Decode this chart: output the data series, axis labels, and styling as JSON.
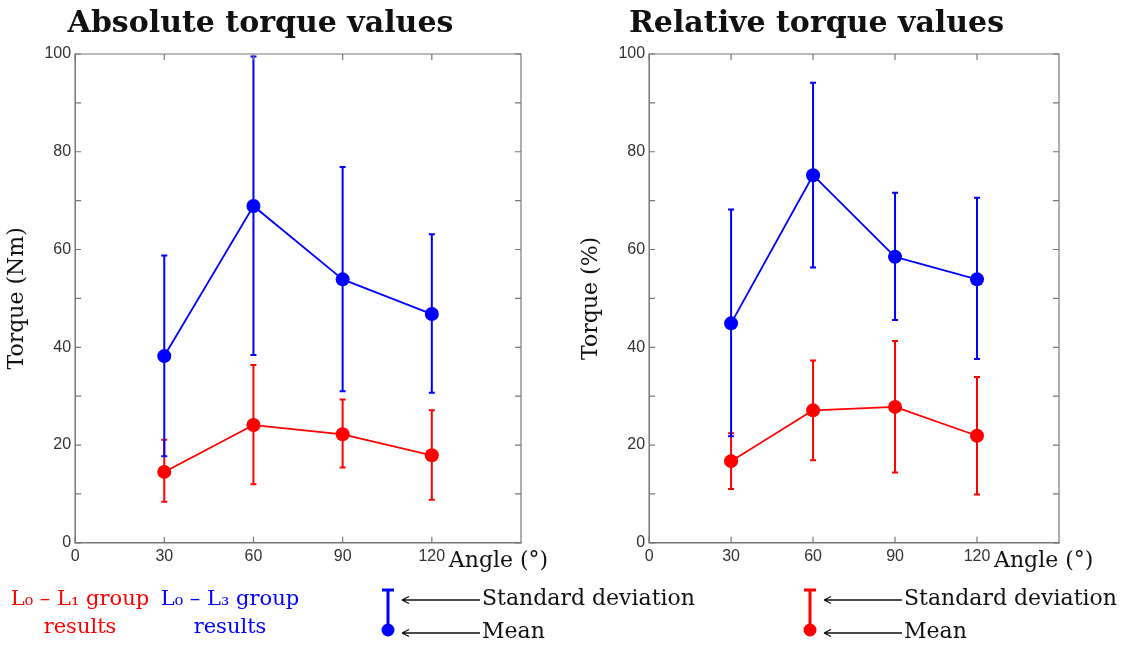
{
  "chart_data": [
    {
      "type": "line",
      "title": "Absolute torque values",
      "xlabel": "Angle (°)",
      "ylabel": "Torque (Nm)",
      "x": [
        30,
        60,
        90,
        120
      ],
      "xlim": [
        0,
        150
      ],
      "xticks": [
        0,
        30,
        60,
        90,
        120
      ],
      "ylim": [
        0,
        100
      ],
      "yticks": [
        0,
        {
          "value": 10,
          "label": null
        },
        20,
        {
          "value": 30,
          "label": null
        },
        40,
        {
          "value": 50,
          "label": null
        },
        60,
        {
          "value": 70,
          "label": null
        },
        80,
        {
          "value": 90,
          "label": null
        },
        100
      ],
      "grid": false,
      "marker": "circle",
      "legend": "bottom",
      "annotations": [
        "Standard deviation",
        "Mean"
      ],
      "series": [
        {
          "name": "L₀ – L₁ group results",
          "color": "#ff0000",
          "values": [
            14.5,
            24.1,
            22.2,
            17.9
          ],
          "errors": [
            [
              8.4,
              21.1
            ],
            [
              12.0,
              36.4
            ],
            [
              15.4,
              29.3
            ],
            [
              8.8,
              27.1
            ]
          ]
        },
        {
          "name": "L₀ – L₃ group results",
          "color": "#0000ff",
          "values": [
            38.2,
            68.9,
            53.9,
            46.8
          ],
          "errors": [
            [
              17.7,
              58.8
            ],
            [
              38.4,
              99.5
            ],
            [
              31.0,
              76.9
            ],
            [
              30.7,
              63.1
            ]
          ]
        }
      ]
    },
    {
      "type": "line",
      "title": "Relative torque values",
      "xlabel": "Angle (°)",
      "ylabel": "Torque (%)",
      "x": [
        30,
        60,
        90,
        120
      ],
      "xlim": [
        0,
        150
      ],
      "xticks": [
        0,
        30,
        60,
        90,
        120
      ],
      "ylim": [
        0,
        100
      ],
      "yticks": [
        0,
        {
          "value": 10,
          "label": null
        },
        20,
        {
          "value": 30,
          "label": null
        },
        40,
        {
          "value": 50,
          "label": null
        },
        60,
        {
          "value": 70,
          "label": null
        },
        80,
        {
          "value": 90,
          "label": null
        },
        100
      ],
      "grid": false,
      "marker": "circle",
      "annotations": [
        "Standard deviation",
        "Mean"
      ],
      "series": [
        {
          "color": "#ff0000",
          "values": [
            16.7,
            27.1,
            27.8,
            21.9
          ],
          "errors": [
            [
              11.0,
              22.4
            ],
            [
              16.9,
              37.3
            ],
            [
              14.4,
              41.3
            ],
            [
              9.9,
              33.9
            ]
          ]
        },
        {
          "color": "#0000ff",
          "values": [
            44.9,
            75.2,
            58.5,
            53.9
          ],
          "errors": [
            [
              21.8,
              68.2
            ],
            [
              56.3,
              94.1
            ],
            [
              45.6,
              71.6
            ],
            [
              37.6,
              70.6
            ]
          ]
        }
      ]
    }
  ]
}
